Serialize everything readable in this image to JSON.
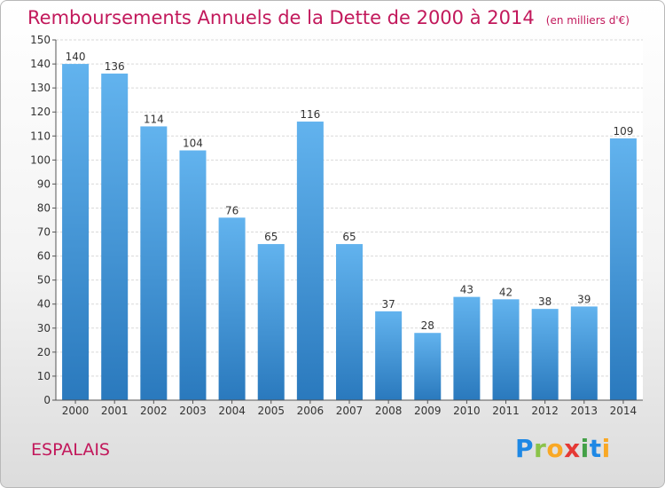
{
  "title": "Remboursements Annuels de la Dette de 2000 à 2014",
  "unit": "(en milliers d'€)",
  "commune": "ESPALAIS",
  "logo_text": "Proxiti",
  "colors": {
    "title": "#c2185b",
    "bar_top": "#62b3ee",
    "bar_bottom": "#2a79bd"
  },
  "chart_data": {
    "type": "bar",
    "title": "Remboursements Annuels de la Dette de 2000 à 2014",
    "ylabel": "",
    "xlabel": "",
    "categories": [
      "2000",
      "2001",
      "2002",
      "2003",
      "2004",
      "2005",
      "2006",
      "2007",
      "2008",
      "2009",
      "2010",
      "2011",
      "2012",
      "2013",
      "2014"
    ],
    "values": [
      140,
      136,
      114,
      104,
      76,
      65,
      116,
      65,
      37,
      28,
      43,
      42,
      38,
      39,
      109
    ],
    "ylim": [
      0,
      150
    ],
    "ytick_step": 10,
    "grid": true
  }
}
